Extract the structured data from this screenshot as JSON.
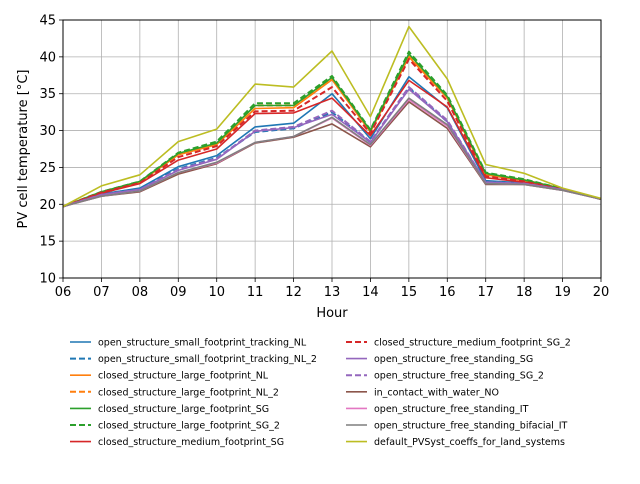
{
  "chart_data": {
    "type": "line",
    "xlabel": "Hour",
    "ylabel": "PV cell temperature [°C]",
    "ylim": [
      10,
      45
    ],
    "x": [
      "06",
      "07",
      "08",
      "09",
      "10",
      "11",
      "12",
      "13",
      "14",
      "15",
      "16",
      "17",
      "18",
      "19",
      "20"
    ],
    "yticks": [
      "10",
      "15",
      "20",
      "25",
      "30",
      "35",
      "40",
      "45"
    ],
    "grid": true,
    "legend_placement": "below plot, two columns",
    "series": [
      {
        "name": "open_structure_small_footprint_tracking_NL",
        "color": "#1f77b4",
        "dashed": false,
        "values": [
          19.7,
          21.4,
          22.2,
          25.1,
          26.6,
          30.5,
          31.0,
          35.0,
          28.9,
          37.3,
          33.1,
          23.2,
          22.9,
          22.0,
          20.7
        ]
      },
      {
        "name": "open_structure_small_footprint_tracking_NL_2",
        "color": "#1f77b4",
        "dashed": true,
        "values": [
          19.7,
          21.4,
          22.1,
          24.8,
          26.3,
          29.8,
          30.3,
          32.5,
          28.4,
          35.8,
          31.2,
          23.0,
          22.8,
          22.0,
          20.7
        ]
      },
      {
        "name": "closed_structure_large_footprint_NL",
        "color": "#ff7f0e",
        "dashed": false,
        "values": [
          19.7,
          21.6,
          23.0,
          26.7,
          28.1,
          33.0,
          33.1,
          36.9,
          29.8,
          40.0,
          34.4,
          24.0,
          23.2,
          22.1,
          20.7
        ]
      },
      {
        "name": "closed_structure_large_footprint_NL_2",
        "color": "#ff7f0e",
        "dashed": true,
        "values": [
          19.7,
          21.6,
          23.0,
          26.8,
          28.2,
          33.4,
          33.4,
          37.1,
          29.9,
          40.2,
          34.5,
          24.1,
          23.3,
          22.1,
          20.7
        ]
      },
      {
        "name": "closed_structure_large_footprint_SG",
        "color": "#2ca02c",
        "dashed": false,
        "values": [
          19.7,
          21.7,
          23.1,
          26.9,
          28.3,
          33.4,
          33.4,
          37.2,
          30.0,
          40.4,
          34.6,
          24.2,
          23.3,
          22.1,
          20.7
        ]
      },
      {
        "name": "closed_structure_large_footprint_SG_2",
        "color": "#2ca02c",
        "dashed": true,
        "values": [
          19.7,
          21.7,
          23.1,
          27.0,
          28.5,
          33.7,
          33.7,
          37.4,
          30.1,
          40.7,
          34.8,
          24.3,
          23.4,
          22.1,
          20.7
        ]
      },
      {
        "name": "closed_structure_medium_footprint_SG",
        "color": "#d62728",
        "dashed": false,
        "values": [
          19.7,
          21.5,
          22.8,
          26.0,
          27.5,
          32.3,
          32.4,
          34.4,
          29.3,
          36.8,
          33.2,
          23.6,
          23.0,
          22.0,
          20.7
        ]
      },
      {
        "name": "closed_structure_medium_footprint_SG_2",
        "color": "#d62728",
        "dashed": true,
        "values": [
          19.7,
          21.6,
          22.9,
          26.4,
          27.9,
          32.6,
          32.7,
          35.9,
          29.6,
          39.7,
          34.0,
          23.8,
          23.1,
          22.0,
          20.7
        ]
      },
      {
        "name": "open_structure_free_standing_SG",
        "color": "#9467bd",
        "dashed": false,
        "values": [
          19.7,
          21.3,
          22.0,
          24.6,
          26.1,
          29.9,
          30.4,
          32.2,
          28.4,
          35.6,
          31.2,
          23.0,
          22.8,
          22.0,
          20.7
        ]
      },
      {
        "name": "open_structure_free_standing_SG_2",
        "color": "#9467bd",
        "dashed": true,
        "values": [
          19.7,
          21.3,
          22.0,
          24.7,
          26.2,
          30.0,
          30.5,
          32.7,
          28.5,
          35.9,
          31.4,
          23.0,
          22.8,
          22.0,
          20.7
        ]
      },
      {
        "name": "in_contact_with_water_NO",
        "color": "#8c564b",
        "dashed": false,
        "values": [
          19.7,
          21.1,
          21.7,
          24.1,
          25.5,
          28.3,
          29.1,
          30.9,
          27.8,
          33.9,
          30.3,
          22.7,
          22.7,
          21.9,
          20.7
        ]
      },
      {
        "name": "open_structure_free_standing_IT",
        "color": "#e377c2",
        "dashed": false,
        "values": [
          19.7,
          21.1,
          21.8,
          24.3,
          25.6,
          28.4,
          29.2,
          31.7,
          28.0,
          34.2,
          30.6,
          22.8,
          22.7,
          21.9,
          20.7
        ]
      },
      {
        "name": "open_structure_free_standing_bifacial_IT",
        "color": "#7f7f7f",
        "dashed": false,
        "values": [
          19.7,
          21.1,
          21.8,
          24.3,
          25.7,
          28.4,
          29.2,
          31.8,
          28.1,
          34.4,
          30.8,
          22.8,
          22.7,
          21.9,
          20.7
        ]
      },
      {
        "name": "default_PVSyst_coeffs_for_land_systems",
        "color": "#bcbd22",
        "dashed": false,
        "values": [
          19.7,
          22.5,
          24.0,
          28.5,
          30.2,
          36.3,
          35.9,
          40.8,
          31.9,
          44.1,
          37.0,
          25.4,
          24.2,
          22.2,
          20.8
        ]
      }
    ]
  }
}
